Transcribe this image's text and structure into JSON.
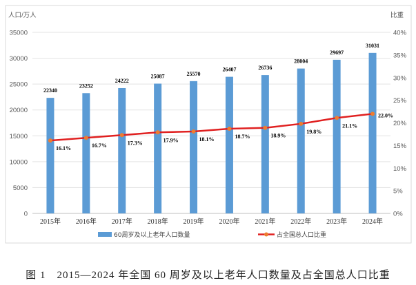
{
  "chart_data": {
    "type": "bar+line",
    "categories": [
      "2015年",
      "2016年",
      "2017年",
      "2018年",
      "2019年",
      "2020年",
      "2021年",
      "2022年",
      "2023年",
      "2024年"
    ],
    "ylabel_left": "人口/万人",
    "ylabel_right": "比重",
    "ylim_left": [
      0,
      35000
    ],
    "ylim_right": [
      0,
      40
    ],
    "yticks_left": [
      "0",
      "5000",
      "10000",
      "15000",
      "20000",
      "25000",
      "30000",
      "35000"
    ],
    "yticks_right": [
      "0%",
      "5%",
      "10%",
      "15%",
      "20%",
      "25%",
      "30%",
      "35%",
      "40%"
    ],
    "grid": true,
    "legend_placement": "bottom",
    "series": [
      {
        "name": "60周岁及以上老年人口数量",
        "type": "bar",
        "axis": "left",
        "color": "#5b9bd5",
        "values": [
          22340,
          23252,
          24222,
          25087,
          25570,
          26407,
          26736,
          28004,
          29697,
          31031
        ],
        "labels": [
          "22340",
          "23252",
          "24222",
          "25087",
          "25570",
          "26407",
          "26736",
          "28004",
          "29697",
          "31031"
        ]
      },
      {
        "name": "占全国总人口比重",
        "type": "line",
        "axis": "right",
        "color": "#e02020",
        "marker_color": "#ed7d31",
        "values": [
          16.1,
          16.7,
          17.3,
          17.9,
          18.1,
          18.7,
          18.9,
          19.8,
          21.1,
          22.0
        ],
        "labels": [
          "16.1%",
          "16.7%",
          "17.3%",
          "17.9%",
          "18.1%",
          "18.7%",
          "18.9%",
          "19.8%",
          "21.1%",
          "22.0%"
        ]
      }
    ]
  },
  "caption": "图 1　2015—2024 年全国 60 周岁及以上老年人口数量及占全国总人口比重"
}
